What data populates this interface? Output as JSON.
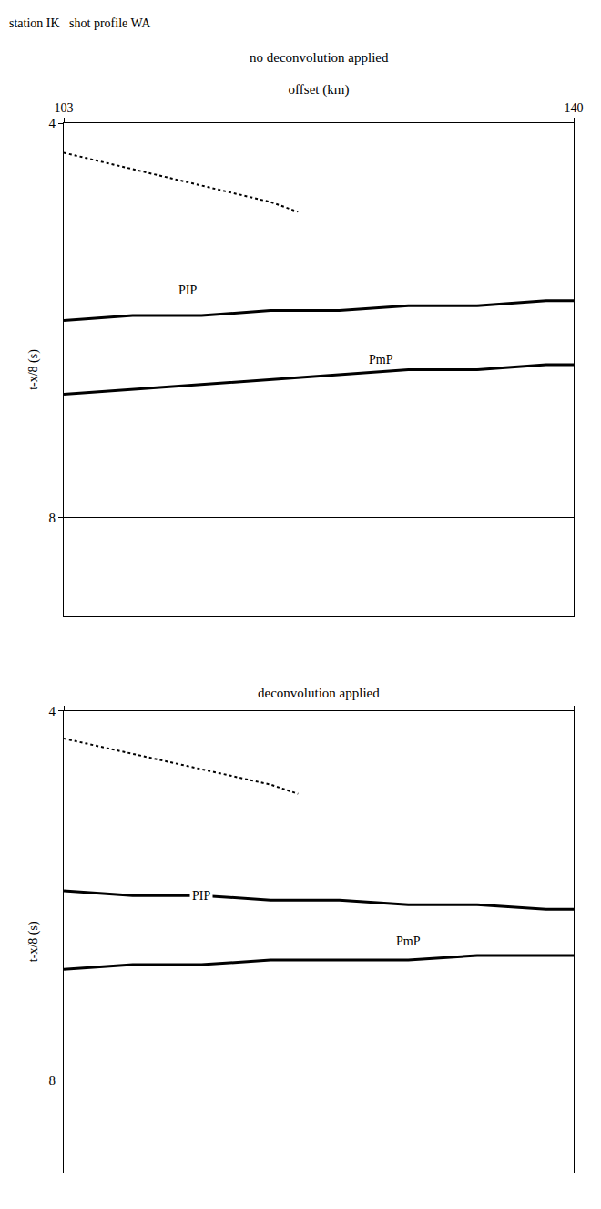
{
  "header": {
    "text": "station IK   shot profile WA"
  },
  "chart_data": [
    {
      "type": "line",
      "title": "no deconvolution applied",
      "x_label": "offset (km)",
      "y_label": "t-x/8 (s)",
      "xlim": [
        103,
        140
      ],
      "xticks": [
        103,
        140
      ],
      "ylim": [
        4,
        9
      ],
      "yticks": [
        4,
        8
      ],
      "grid": true,
      "color": "#000000",
      "series": [
        {
          "x": [
            103,
            106,
            109,
            112,
            115,
            118,
            120
          ],
          "values": [
            4.3,
            4.4,
            4.5,
            4.6,
            4.7,
            4.8,
            4.9
          ],
          "line_style": "dotted"
        },
        {
          "name": "PIP",
          "x": [
            103,
            108,
            113,
            118,
            123,
            128,
            133,
            138,
            140
          ],
          "values": [
            6.0,
            5.95,
            5.95,
            5.9,
            5.9,
            5.85,
            5.85,
            5.8,
            5.8
          ],
          "line_style": "solid"
        },
        {
          "name": "PmP",
          "x": [
            103,
            108,
            113,
            118,
            123,
            128,
            133,
            138,
            140
          ],
          "values": [
            6.75,
            6.7,
            6.65,
            6.6,
            6.55,
            6.5,
            6.5,
            6.45,
            6.45
          ],
          "line_style": "solid"
        }
      ],
      "annotations": [
        {
          "text": "PIP",
          "x": 112,
          "y": 5.7
        },
        {
          "text": "PmP",
          "x": 126,
          "y": 6.4
        }
      ]
    },
    {
      "type": "line",
      "title": "deconvolution applied",
      "y_label": "t-x/8 (s)",
      "xlim": [
        103,
        140
      ],
      "xticks": [
        103,
        140
      ],
      "ylim": [
        4,
        9
      ],
      "yticks": [
        4,
        8
      ],
      "grid": true,
      "tick_labels": "y",
      "color": "#000000",
      "series": [
        {
          "x": [
            103,
            106,
            109,
            112,
            115,
            118,
            120
          ],
          "values": [
            4.3,
            4.4,
            4.5,
            4.6,
            4.7,
            4.8,
            4.9
          ],
          "line_style": "dotted"
        },
        {
          "name": "PIP",
          "x": [
            103,
            108,
            113,
            118,
            123,
            128,
            133,
            138,
            140
          ],
          "values": [
            5.95,
            6.0,
            6.0,
            6.05,
            6.05,
            6.1,
            6.1,
            6.15,
            6.15
          ],
          "line_style": "solid"
        },
        {
          "name": "PmP",
          "x": [
            103,
            108,
            113,
            118,
            123,
            128,
            133,
            138,
            140
          ],
          "values": [
            6.8,
            6.75,
            6.75,
            6.7,
            6.7,
            6.7,
            6.65,
            6.65,
            6.65
          ],
          "line_style": "solid"
        }
      ],
      "annotations": [
        {
          "text": "PIP",
          "x": 113,
          "y": 6.0
        },
        {
          "text": "PmP",
          "x": 128,
          "y": 6.5
        }
      ]
    }
  ]
}
